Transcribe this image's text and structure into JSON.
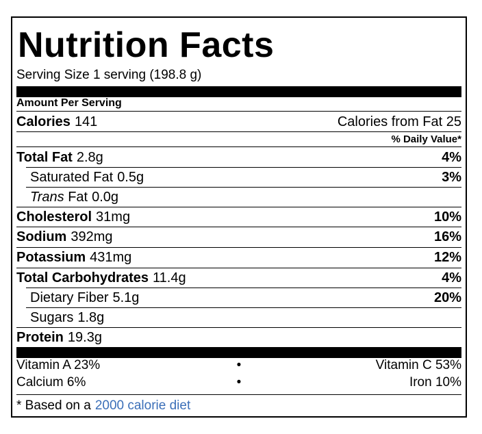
{
  "title": "Nutrition Facts",
  "serving_size": "Serving Size 1 serving (198.8 g)",
  "amount_per_serving": "Amount Per Serving",
  "calories": {
    "label": "Calories",
    "value": "141"
  },
  "calories_from_fat": "Calories from Fat 25",
  "daily_value_header": "% Daily Value*",
  "nutrients": [
    {
      "label": "Total Fat",
      "amount": "2.8g",
      "dv": "4%"
    },
    {
      "label": "Saturated Fat",
      "amount": "0.5g",
      "dv": "3%"
    },
    {
      "label_italic": "Trans",
      "label_rest": "Fat",
      "amount": "0.0g",
      "dv": ""
    },
    {
      "label": "Cholesterol",
      "amount": "31mg",
      "dv": "10%"
    },
    {
      "label": "Sodium",
      "amount": "392mg",
      "dv": "16%"
    },
    {
      "label": "Potassium",
      "amount": "431mg",
      "dv": "12%"
    },
    {
      "label": "Total Carbohydrates",
      "amount": "11.4g",
      "dv": "4%"
    },
    {
      "label": "Dietary Fiber",
      "amount": "5.1g",
      "dv": "20%"
    },
    {
      "label": "Sugars",
      "amount": "1.8g",
      "dv": ""
    },
    {
      "label": "Protein",
      "amount": "19.3g",
      "dv": ""
    }
  ],
  "vitamins": [
    {
      "left": "Vitamin A 23%",
      "sep": "•",
      "right": "Vitamin C 53%"
    },
    {
      "left": "Calcium 6%",
      "sep": "•",
      "right": "Iron 10%"
    }
  ],
  "footnote": {
    "prefix": "* Based on a",
    "link": "2000 calorie diet"
  }
}
